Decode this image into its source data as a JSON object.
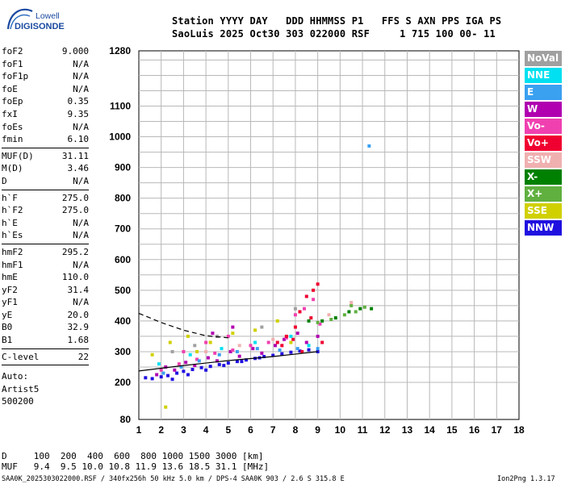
{
  "logo": {
    "line1": "Lowell",
    "line2": "DIGISONDE"
  },
  "header": {
    "row1": "Station YYYY DAY   DDD HHMMSS P1   FFS S AXN PPS IGA PS",
    "row2": "SaoLuis 2025 Oct30 303 022000 RSF     1 715 100 00- 11"
  },
  "params": [
    {
      "group": [
        {
          "name": "foF2",
          "value": "9.000"
        },
        {
          "name": "foF1",
          "value": "N/A"
        },
        {
          "name": "foF1p",
          "value": "N/A"
        },
        {
          "name": "foE",
          "value": "N/A"
        },
        {
          "name": "foEp",
          "value": "0.35"
        },
        {
          "name": "fxI",
          "value": "9.35"
        },
        {
          "name": "foEs",
          "value": "N/A"
        },
        {
          "name": "fmin",
          "value": "6.10"
        }
      ]
    },
    {
      "group": [
        {
          "name": "MUF(D)",
          "value": "31.11"
        },
        {
          "name": "M(D)",
          "value": "3.46"
        },
        {
          "name": "D",
          "value": "N/A"
        }
      ]
    },
    {
      "group": [
        {
          "name": "h`F",
          "value": "275.0"
        },
        {
          "name": "h`F2",
          "value": "275.0"
        },
        {
          "name": "h`E",
          "value": "N/A"
        },
        {
          "name": "h`Es",
          "value": "N/A"
        }
      ]
    },
    {
      "group": [
        {
          "name": "hmF2",
          "value": "295.2"
        },
        {
          "name": "hmF1",
          "value": "N/A"
        },
        {
          "name": "hmE",
          "value": "110.0"
        },
        {
          "name": "yF2",
          "value": "31.4"
        },
        {
          "name": "yF1",
          "value": "N/A"
        },
        {
          "name": "yE",
          "value": "20.0"
        },
        {
          "name": "B0",
          "value": "32.9"
        },
        {
          "name": "B1",
          "value": "1.68"
        }
      ]
    },
    {
      "group": [
        {
          "name": "C-level",
          "value": "22"
        }
      ]
    }
  ],
  "auto": [
    "Auto:",
    "Artist5",
    "500200"
  ],
  "legend": [
    {
      "label": "NoVal",
      "color": "#a0a0a0"
    },
    {
      "label": "NNE",
      "color": "#00e0f0"
    },
    {
      "label": "E",
      "color": "#3aa0f0"
    },
    {
      "label": "W",
      "color": "#b000b0"
    },
    {
      "label": "Vo-",
      "color": "#f040b0"
    },
    {
      "label": "Vo+",
      "color": "#f00030"
    },
    {
      "label": "SSW",
      "color": "#f0b0b0"
    },
    {
      "label": "X-",
      "color": "#008000"
    },
    {
      "label": "X+",
      "color": "#60b040"
    },
    {
      "label": "SSE",
      "color": "#d0d000"
    },
    {
      "label": "NNW",
      "color": "#2010e0"
    }
  ],
  "footer": {
    "d_row": "D     100  200  400  600  800 1000 1500 3000 [km]",
    "muf_row": "MUF   9.4  9.5 10.0 10.8 11.9 13.6 18.5 31.1 [MHz]",
    "file_info": "SAA0K_2025303022000.RSF / 340fx256h 50 kHz 5.0 km / DPS-4 SAA0K 903 / 2.6 S 315.8 E",
    "version": "Ion2Png 1.3.17"
  },
  "chart_data": {
    "type": "scatter",
    "title": "",
    "xlabel": "",
    "ylabel": "",
    "xlim": [
      1,
      18
    ],
    "x_ticks": [
      1,
      2,
      3,
      4,
      5,
      6,
      7,
      8,
      9,
      10,
      11,
      12,
      13,
      14,
      15,
      16,
      17,
      18
    ],
    "y_ticks": [
      80,
      200,
      300,
      400,
      500,
      600,
      700,
      800,
      900,
      1000,
      1100,
      1280
    ],
    "y_axis_segments": [
      {
        "value_range": [
          80,
          200
        ],
        "note": "compressed lower segment"
      },
      {
        "value_range": [
          200,
          1280
        ],
        "note": "linear"
      }
    ],
    "grid": true,
    "legend_position": "right",
    "series": [
      {
        "name": "NNW",
        "color": "#2010e0",
        "points": [
          [
            1.3,
            215
          ],
          [
            1.6,
            212
          ],
          [
            2.0,
            218
          ],
          [
            2.3,
            222
          ],
          [
            2.7,
            230
          ],
          [
            3.0,
            236
          ],
          [
            3.4,
            242
          ],
          [
            3.8,
            248
          ],
          [
            4.2,
            252
          ],
          [
            4.6,
            258
          ],
          [
            5.0,
            263
          ],
          [
            5.4,
            268
          ],
          [
            5.8,
            273
          ],
          [
            6.2,
            278
          ],
          [
            6.6,
            284
          ],
          [
            7.0,
            288
          ],
          [
            7.4,
            293
          ],
          [
            7.8,
            298
          ],
          [
            8.2,
            302
          ],
          [
            8.6,
            306
          ],
          [
            9.0,
            300
          ],
          [
            2.5,
            210
          ],
          [
            3.2,
            225
          ],
          [
            4.0,
            240
          ],
          [
            4.8,
            255
          ],
          [
            5.6,
            268
          ],
          [
            6.4,
            280
          ]
        ]
      },
      {
        "name": "W",
        "color": "#b000b0",
        "points": [
          [
            1.8,
            225
          ],
          [
            2.2,
            250
          ],
          [
            2.6,
            240
          ],
          [
            3.1,
            265
          ],
          [
            3.5,
            255
          ],
          [
            4.1,
            280
          ],
          [
            4.5,
            270
          ],
          [
            5.1,
            300
          ],
          [
            5.5,
            285
          ],
          [
            6.1,
            310
          ],
          [
            6.5,
            295
          ],
          [
            7.1,
            320
          ],
          [
            7.5,
            340
          ],
          [
            8.1,
            360
          ],
          [
            8.5,
            330
          ],
          [
            9.0,
            350
          ],
          [
            4.3,
            360
          ],
          [
            5.2,
            380
          ]
        ]
      },
      {
        "name": "Vo-",
        "color": "#f040b0",
        "points": [
          [
            2.0,
            240
          ],
          [
            2.8,
            260
          ],
          [
            3.6,
            275
          ],
          [
            4.4,
            295
          ],
          [
            5.2,
            305
          ],
          [
            6.0,
            320
          ],
          [
            6.8,
            330
          ],
          [
            7.6,
            345
          ],
          [
            8.0,
            420
          ],
          [
            8.4,
            440
          ],
          [
            8.8,
            470
          ],
          [
            9.1,
            390
          ],
          [
            3.0,
            300
          ],
          [
            4.0,
            330
          ],
          [
            5.0,
            350
          ]
        ]
      },
      {
        "name": "Vo+",
        "color": "#f00030",
        "points": [
          [
            7.2,
            330
          ],
          [
            7.6,
            350
          ],
          [
            8.0,
            380
          ],
          [
            8.2,
            430
          ],
          [
            8.5,
            480
          ],
          [
            8.8,
            500
          ],
          [
            9.0,
            520
          ],
          [
            8.7,
            410
          ],
          [
            9.2,
            330
          ],
          [
            8.3,
            300
          ],
          [
            7.9,
            340
          ],
          [
            7.4,
            320
          ]
        ]
      },
      {
        "name": "E",
        "color": "#3aa0f0",
        "points": [
          [
            2.1,
            230
          ],
          [
            2.9,
            250
          ],
          [
            3.7,
            270
          ],
          [
            4.6,
            290
          ],
          [
            5.4,
            300
          ],
          [
            6.3,
            310
          ],
          [
            7.3,
            305
          ],
          [
            8.1,
            310
          ],
          [
            9.0,
            310
          ],
          [
            11.3,
            970
          ]
        ]
      },
      {
        "name": "NNE",
        "color": "#00e0f0",
        "points": [
          [
            1.9,
            260
          ],
          [
            3.3,
            290
          ],
          [
            4.7,
            310
          ],
          [
            6.2,
            330
          ],
          [
            7.8,
            350
          ],
          [
            8.6,
            320
          ]
        ]
      },
      {
        "name": "X-",
        "color": "#008000",
        "points": [
          [
            8.6,
            400
          ],
          [
            9.2,
            400
          ],
          [
            9.8,
            410
          ],
          [
            10.4,
            430
          ],
          [
            10.9,
            440
          ],
          [
            11.4,
            440
          ]
        ]
      },
      {
        "name": "X+",
        "color": "#60b040",
        "points": [
          [
            9.0,
            395
          ],
          [
            9.6,
            405
          ],
          [
            10.2,
            420
          ],
          [
            10.7,
            430
          ],
          [
            11.1,
            445
          ],
          [
            10.5,
            450
          ]
        ]
      },
      {
        "name": "SSE",
        "color": "#d0d000",
        "points": [
          [
            1.6,
            290
          ],
          [
            2.4,
            330
          ],
          [
            3.2,
            350
          ],
          [
            4.2,
            330
          ],
          [
            5.2,
            360
          ],
          [
            6.2,
            370
          ],
          [
            7.2,
            400
          ],
          [
            7.8,
            330
          ],
          [
            2.2,
            120
          ],
          [
            3.6,
            300
          ]
        ]
      },
      {
        "name": "SSW",
        "color": "#f0b0b0",
        "points": [
          [
            4.0,
            300
          ],
          [
            5.5,
            320
          ],
          [
            7.0,
            340
          ],
          [
            9.5,
            420
          ],
          [
            10.5,
            460
          ]
        ]
      },
      {
        "name": "NoVal",
        "color": "#a0a0a0",
        "points": [
          [
            2.5,
            300
          ],
          [
            3.5,
            320
          ],
          [
            4.5,
            350
          ],
          [
            6.5,
            380
          ],
          [
            8.0,
            440
          ]
        ]
      }
    ],
    "overlay_lines": [
      {
        "style": "solid",
        "color": "#000000",
        "points": [
          [
            1,
            237
          ],
          [
            3,
            255
          ],
          [
            5,
            271
          ],
          [
            7,
            284
          ],
          [
            9,
            300
          ]
        ]
      },
      {
        "style": "dashed",
        "color": "#000000",
        "points": [
          [
            1,
            425
          ],
          [
            2,
            395
          ],
          [
            3,
            370
          ],
          [
            4,
            352
          ],
          [
            5,
            345
          ]
        ]
      }
    ]
  }
}
